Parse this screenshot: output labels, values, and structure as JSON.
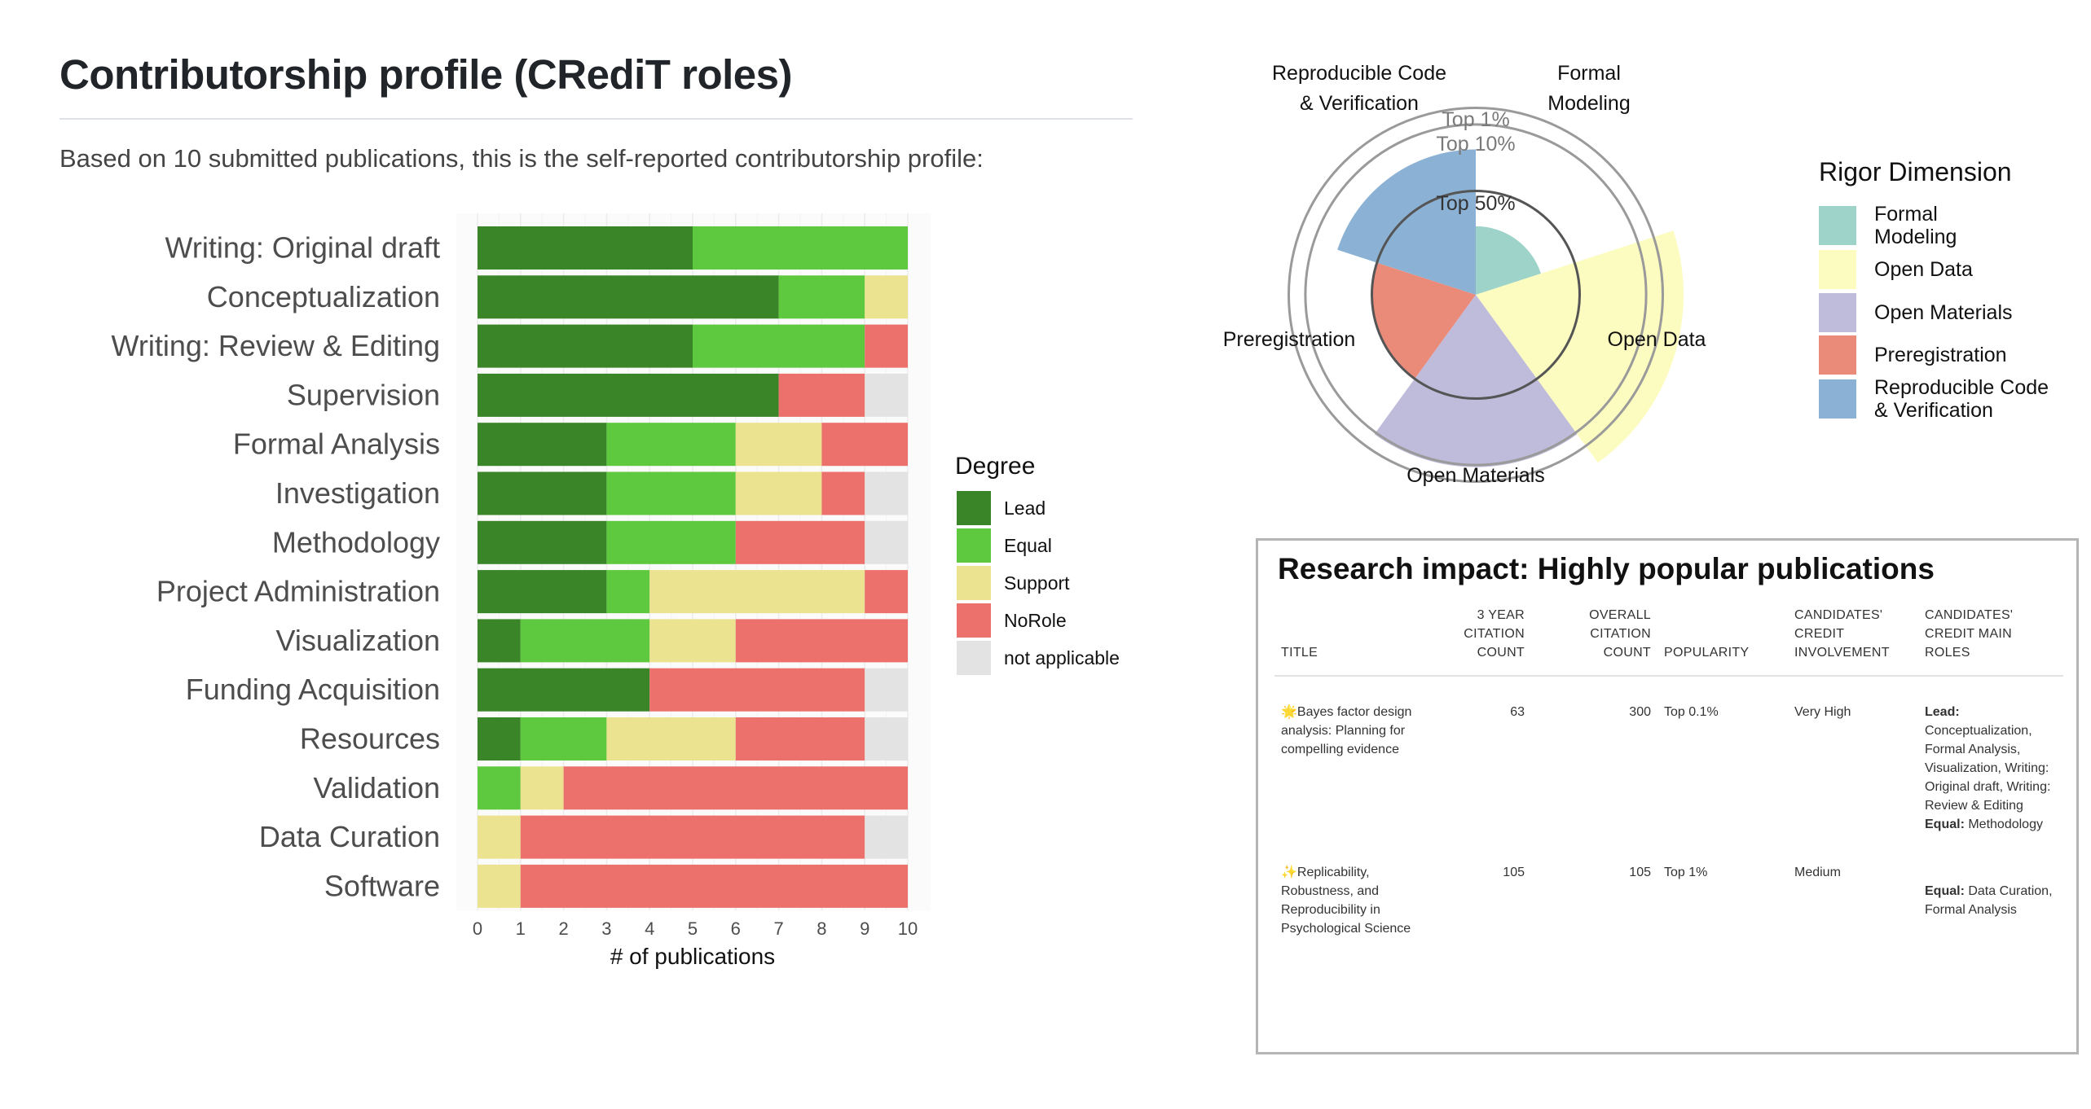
{
  "header": {
    "title": "Contributorship profile (CRediT roles)",
    "subtitle": "Based on 10 submitted publications, this is the self-reported contributorship profile:"
  },
  "chart_data": [
    {
      "type": "bar",
      "orientation": "horizontal",
      "stacked": true,
      "categories": [
        "Writing: Original draft",
        "Conceptualization",
        "Writing: Review & Editing",
        "Supervision",
        "Formal Analysis",
        "Investigation",
        "Methodology",
        "Project Administration",
        "Visualization",
        "Funding Acquisition",
        "Resources",
        "Validation",
        "Data Curation",
        "Software"
      ],
      "series": [
        {
          "name": "Lead",
          "color": "#3a8527",
          "values": [
            5,
            7,
            5,
            7,
            3,
            3,
            3,
            3,
            1,
            4,
            1,
            0,
            0,
            0
          ]
        },
        {
          "name": "Equal",
          "color": "#5ec93e",
          "values": [
            5,
            2,
            4,
            0,
            3,
            3,
            3,
            1,
            3,
            0,
            2,
            1,
            0,
            0
          ]
        },
        {
          "name": "Support",
          "color": "#ebe38f",
          "values": [
            0,
            1,
            0,
            0,
            2,
            2,
            0,
            5,
            2,
            0,
            3,
            1,
            1,
            1
          ]
        },
        {
          "name": "NoRole",
          "color": "#ec706c",
          "values": [
            0,
            0,
            1,
            2,
            2,
            1,
            3,
            1,
            4,
            5,
            3,
            8,
            8,
            9
          ]
        },
        {
          "name": "not applicable",
          "color": "#e3e3e3",
          "values": [
            0,
            0,
            0,
            1,
            0,
            1,
            1,
            0,
            0,
            1,
            1,
            0,
            1,
            0
          ]
        }
      ],
      "xlabel": "# of publications",
      "ylabel": "",
      "xlim": [
        0,
        10
      ],
      "xticks": [
        "0",
        "1",
        "2",
        "3",
        "4",
        "5",
        "6",
        "7",
        "8",
        "9",
        "10"
      ],
      "legend_title": "Degree",
      "legend_position": "right",
      "grid": true
    },
    {
      "type": "polar-area",
      "categories": [
        "Formal Modeling",
        "Open Data",
        "Open Materials",
        "Preregistration",
        "Reproducible Code & Verification"
      ],
      "axis_labels": [
        "Formal\nModeling",
        "Open Data",
        "Open Materials",
        "Preregistration",
        "Reproducible Code\n& Verification"
      ],
      "legend_labels": [
        "Formal\nModeling",
        "Open Data",
        "Open Materials",
        "Preregistration",
        "Reproducible Code\n& Verification"
      ],
      "values": [
        0.33,
        1.0,
        0.83,
        0.5,
        0.7
      ],
      "colors": [
        "#9dd3c8",
        "#fcfcc0",
        "#bfbbdb",
        "#ea8b7a",
        "#8bb1d4"
      ],
      "reference_rings": [
        {
          "label": "Top 50%",
          "value": 0.5
        },
        {
          "label": "Top 10%",
          "value": 0.82
        },
        {
          "label": "Top 1%",
          "value": 0.9
        }
      ],
      "legend_title": "Rigor Dimension",
      "legend_position": "right"
    }
  ],
  "impact": {
    "title": "Research impact: Highly popular publications",
    "columns": [
      "Title",
      "3 year\ncitation\ncount",
      "Overall\ncitation\ncount",
      "Popularity",
      "Candidates'\nCRedIT\ninvolvement",
      "Candidates'\nCRedIT main\nroles"
    ],
    "rows": [
      {
        "icon": "🌟",
        "title": "Bayes factor design analysis: Planning for compelling evidence",
        "citations_3y": "63",
        "citations_total": "300",
        "popularity": "Top 0.1%",
        "involvement": "Very High",
        "roles": [
          {
            "key": "Lead:",
            "value": "Conceptualization, Formal Analysis, Visualization, Writing: Original draft, Writing: Review & Editing"
          },
          {
            "key": "Equal:",
            "value": "Methodology"
          }
        ]
      },
      {
        "icon": "✨",
        "title": "Replicability, Robustness, and Reproducibility in Psychological Science",
        "citations_3y": "105",
        "citations_total": "105",
        "popularity": "Top 1%",
        "involvement": "Medium",
        "roles": [
          {
            "key": "Equal:",
            "value": "Data Curation, Formal Analysis"
          }
        ]
      }
    ]
  }
}
